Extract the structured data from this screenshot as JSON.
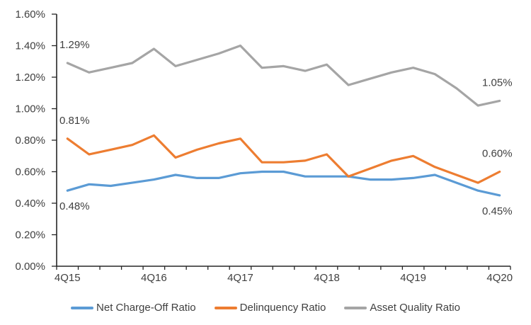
{
  "chart_data": {
    "type": "line",
    "title": "",
    "x_axis_labels": [
      "4Q15",
      "4Q16",
      "4Q17",
      "4Q18",
      "4Q19",
      "4Q20"
    ],
    "label_every": 4,
    "n_points": 21,
    "y_tick_labels": [
      "0.00%",
      "0.20%",
      "0.40%",
      "0.60%",
      "0.80%",
      "1.00%",
      "1.20%",
      "1.40%",
      "1.60%"
    ],
    "ylim": [
      0,
      1.6
    ],
    "grid": false,
    "legend_position": "bottom",
    "axis_color": "#262626",
    "text_color": "#404040",
    "series": [
      {
        "name": "Net Charge-Off Ratio",
        "color": "#5B9BD5",
        "values": [
          0.48,
          0.52,
          0.51,
          0.53,
          0.55,
          0.58,
          0.56,
          0.56,
          0.59,
          0.6,
          0.6,
          0.57,
          0.57,
          0.57,
          0.55,
          0.55,
          0.56,
          0.58,
          0.53,
          0.48,
          0.45
        ]
      },
      {
        "name": "Delinquency Ratio",
        "color": "#ED7D31",
        "values": [
          0.81,
          0.71,
          0.74,
          0.77,
          0.83,
          0.69,
          0.74,
          0.78,
          0.81,
          0.66,
          0.66,
          0.67,
          0.71,
          0.57,
          0.62,
          0.67,
          0.7,
          0.63,
          0.58,
          0.53,
          0.6
        ]
      },
      {
        "name": "Asset Quality Ratio",
        "color": "#A5A5A5",
        "values": [
          1.29,
          1.23,
          1.26,
          1.29,
          1.38,
          1.27,
          1.31,
          1.35,
          1.4,
          1.26,
          1.27,
          1.24,
          1.28,
          1.15,
          1.19,
          1.23,
          1.26,
          1.22,
          1.13,
          1.02,
          1.05
        ]
      }
    ],
    "point_labels": [
      {
        "series": 2,
        "index": 0,
        "text": "1.29%",
        "placement": "above-left"
      },
      {
        "series": 1,
        "index": 0,
        "text": "0.81%",
        "placement": "above-left"
      },
      {
        "series": 0,
        "index": 0,
        "text": "0.48%",
        "placement": "below-left"
      },
      {
        "series": 2,
        "index": 20,
        "text": "1.05%",
        "placement": "above-right"
      },
      {
        "series": 1,
        "index": 20,
        "text": "0.60%",
        "placement": "above-right"
      },
      {
        "series": 0,
        "index": 20,
        "text": "0.45%",
        "placement": "below-right"
      }
    ]
  }
}
